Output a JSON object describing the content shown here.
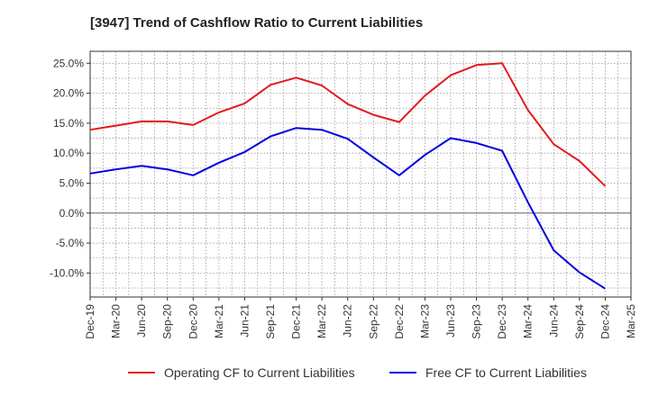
{
  "chart_data": {
    "type": "line",
    "title": "[3947]  Trend of Cashflow Ratio to Current Liabilities",
    "xlabel": "",
    "ylabel": "",
    "x": [
      "Dec-19",
      "Mar-20",
      "Jun-20",
      "Sep-20",
      "Dec-20",
      "Mar-21",
      "Jun-21",
      "Sep-21",
      "Dec-21",
      "Mar-22",
      "Jun-22",
      "Sep-22",
      "Dec-22",
      "Mar-23",
      "Jun-23",
      "Sep-23",
      "Dec-23",
      "Mar-24",
      "Jun-24",
      "Sep-24",
      "Dec-24",
      "Mar-25"
    ],
    "x_tick_labels": [
      "Dec-19",
      "Mar-20",
      "Jun-20",
      "Sep-20",
      "Dec-20",
      "Mar-21",
      "Jun-21",
      "Sep-21",
      "Dec-21",
      "Mar-22",
      "Jun-22",
      "Sep-22",
      "Dec-22",
      "Mar-23",
      "Jun-23",
      "Sep-23",
      "Dec-23",
      "Mar-24",
      "Jun-24",
      "Sep-24",
      "Dec-24",
      "Mar-25"
    ],
    "y_tick_labels": [
      "-10.0%",
      "-5.0%",
      "0.0%",
      "5.0%",
      "10.0%",
      "15.0%",
      "20.0%",
      "25.0%"
    ],
    "y_ticks": [
      -10,
      -5,
      0,
      5,
      10,
      15,
      20,
      25
    ],
    "ylim": [
      -14,
      27
    ],
    "grid": true,
    "legend_position": "bottom",
    "series": [
      {
        "name": "Operating CF to Current Liabilities",
        "color": "#e31a1c",
        "values": [
          13.9,
          14.6,
          15.3,
          15.3,
          14.7,
          16.8,
          18.3,
          21.4,
          22.6,
          21.3,
          18.2,
          16.4,
          15.2,
          19.6,
          23.0,
          24.7,
          25.0,
          17.2,
          11.5,
          8.7,
          4.5,
          null
        ]
      },
      {
        "name": "Free CF to Current Liabilities",
        "color": "#0000e0",
        "values": [
          6.6,
          7.3,
          7.9,
          7.3,
          6.3,
          8.4,
          10.2,
          12.8,
          14.2,
          13.9,
          12.4,
          9.3,
          6.3,
          9.7,
          12.5,
          11.7,
          10.4,
          1.8,
          -6.2,
          -9.9,
          -12.6,
          null
        ]
      }
    ]
  }
}
